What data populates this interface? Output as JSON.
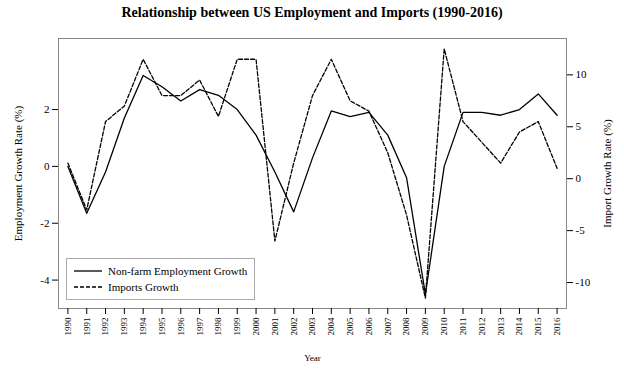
{
  "chart_data": {
    "type": "line",
    "title": "Relationship between US Employment and Imports (1990-2016)",
    "xlabel": "Year",
    "ylabel": "Employment Growth Rate (%)",
    "y2label": "Import Growth Rate (%)",
    "x": [
      1990,
      1991,
      1992,
      1993,
      1994,
      1995,
      1996,
      1997,
      1998,
      1999,
      2000,
      2001,
      2002,
      2003,
      2004,
      2005,
      2006,
      2007,
      2008,
      2009,
      2010,
      2011,
      2012,
      2013,
      2014,
      2015,
      2016
    ],
    "xlim": [
      1989.5,
      2016.5
    ],
    "xticks": [
      1990,
      1991,
      1992,
      1993,
      1994,
      1995,
      1996,
      1997,
      1998,
      1999,
      2000,
      2001,
      2002,
      2003,
      2004,
      2005,
      2006,
      2007,
      2008,
      2009,
      2010,
      2011,
      2012,
      2013,
      2014,
      2015,
      2016
    ],
    "ylim": [
      -5.0,
      4.5
    ],
    "yticks": [
      -4,
      -2,
      0,
      2
    ],
    "y2lim": [
      -12.5,
      13.5
    ],
    "y2ticks": [
      -10,
      -5,
      0,
      5,
      10
    ],
    "series": [
      {
        "name": "Non-farm Employment Growth",
        "color": "#000000",
        "line_style": "solid",
        "values": [
          0.0,
          -1.65,
          -0.2,
          1.7,
          3.2,
          2.8,
          2.3,
          2.7,
          2.5,
          2.0,
          1.1,
          -0.2,
          -1.6,
          0.3,
          1.95,
          1.75,
          1.9,
          1.1,
          -0.4,
          -4.5,
          0.0,
          1.9,
          1.9,
          1.8,
          2.0,
          2.55,
          1.8
        ]
      },
      {
        "name": "Imports Growth",
        "color": "#000000",
        "line_style": "dashed",
        "axis": "y2",
        "values": [
          1.5,
          -3.0,
          5.5,
          7.0,
          11.5,
          8.0,
          8.0,
          9.5,
          6.0,
          11.5,
          11.5,
          -6.0,
          1.5,
          8.0,
          11.5,
          7.5,
          6.5,
          2.5,
          -3.5,
          -11.5,
          12.5,
          5.5,
          3.5,
          1.5,
          4.5,
          5.5,
          1.0
        ]
      }
    ],
    "legend": "lower left",
    "grid": false
  }
}
